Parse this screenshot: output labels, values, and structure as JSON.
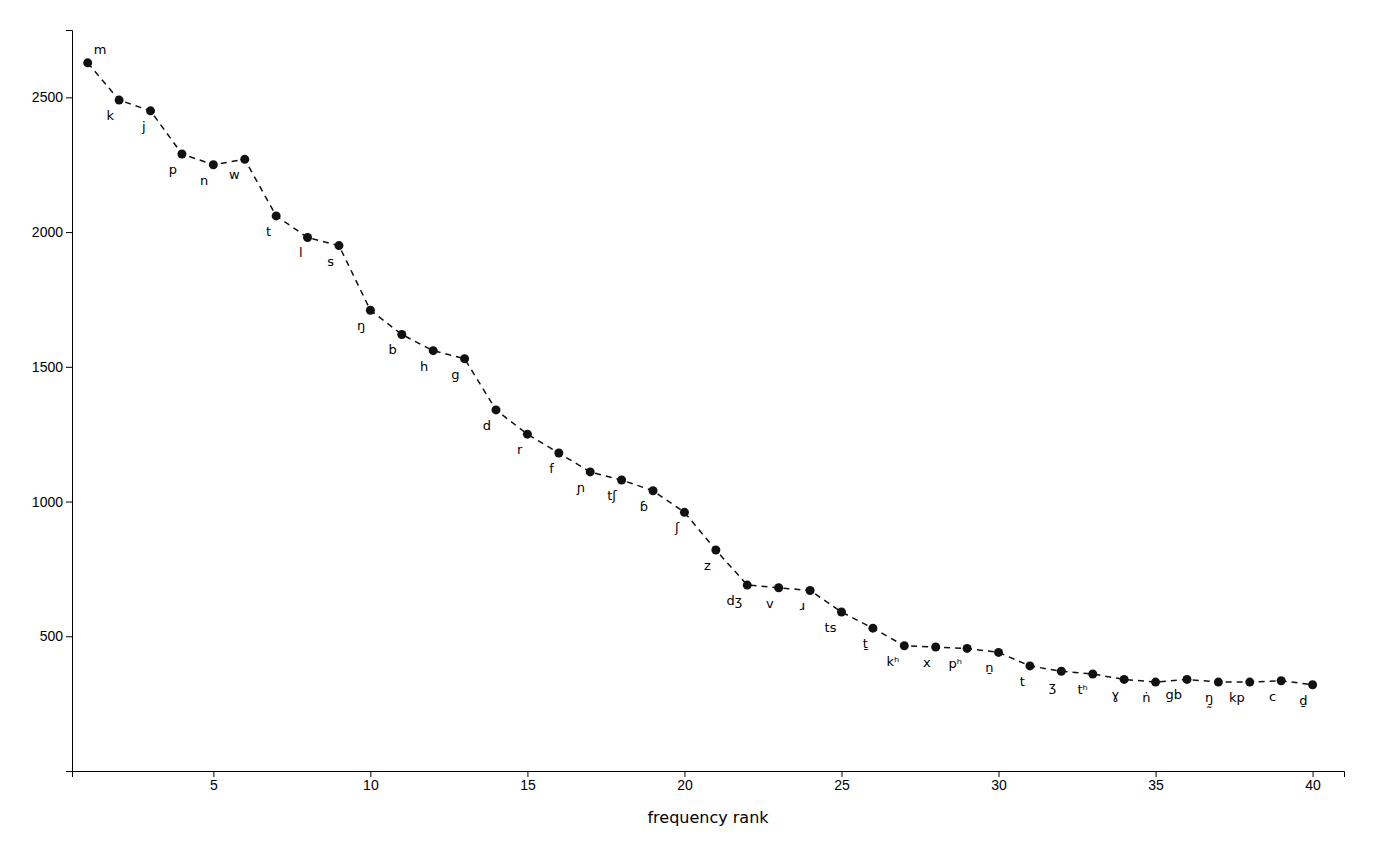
{
  "chart_data": {
    "type": "line",
    "x": [
      1,
      2,
      3,
      4,
      5,
      6,
      7,
      8,
      9,
      10,
      11,
      12,
      13,
      14,
      15,
      16,
      17,
      18,
      19,
      20,
      21,
      22,
      23,
      24,
      25,
      26,
      27,
      28,
      29,
      30,
      31,
      32,
      33,
      34,
      35,
      36,
      37,
      38,
      39,
      40
    ],
    "values": [
      2628,
      2490,
      2450,
      2290,
      2250,
      2270,
      2060,
      1980,
      1950,
      1710,
      1620,
      1560,
      1530,
      1340,
      1250,
      1180,
      1110,
      1080,
      1040,
      960,
      820,
      690,
      680,
      670,
      590,
      530,
      465,
      460,
      455,
      440,
      390,
      370,
      360,
      340,
      330,
      340,
      330,
      330,
      335,
      320
    ],
    "annotations": [
      "m",
      "k",
      "j",
      "p",
      "n",
      "w",
      "t",
      "l",
      "s",
      "ŋ",
      "b",
      "h",
      "g",
      "d",
      "r",
      "f",
      "ɲ",
      "tʃ",
      "ɓ",
      "ʃ",
      "z",
      "dʒ",
      "v",
      "ɹ",
      "ts",
      "ṯ",
      "kʰ",
      "x",
      "pʰ",
      "ṉ",
      "t",
      "ʒ",
      "tʰ",
      "ɣ",
      "ṅ",
      "gb",
      "ŋ̰",
      "kp",
      "c",
      "ḏ"
    ],
    "xlabel": "frequency rank",
    "xlim": [
      0.5,
      41.0
    ],
    "ylim": [
      0,
      2750
    ],
    "xticks": [
      5,
      10,
      15,
      20,
      25,
      30,
      35,
      40
    ],
    "yticks": [
      500,
      1000,
      1500,
      2000,
      2500
    ],
    "color": "#111111",
    "line_style": "dashed",
    "marker": "circle",
    "grid": false
  }
}
